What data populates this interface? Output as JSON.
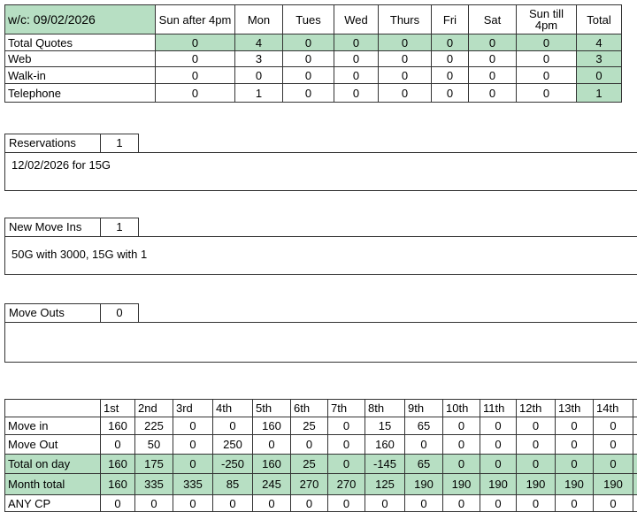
{
  "quotes": {
    "week_label": "w/c:   09/02/2026",
    "columns": [
      "Sun after 4pm",
      "Mon",
      "Tues",
      "Wed",
      "Thurs",
      "Fri",
      "Sat",
      "Sun till 4pm",
      "Total"
    ],
    "rows": [
      {
        "label": "Total Quotes",
        "values": [
          "0",
          "4",
          "0",
          "0",
          "0",
          "0",
          "0",
          "0",
          "4"
        ]
      },
      {
        "label": "Web",
        "values": [
          "0",
          "3",
          "0",
          "0",
          "0",
          "0",
          "0",
          "0",
          "3"
        ]
      },
      {
        "label": "Walk-in",
        "values": [
          "0",
          "0",
          "0",
          "0",
          "0",
          "0",
          "0",
          "0",
          "0"
        ]
      },
      {
        "label": "Telephone",
        "values": [
          "0",
          "1",
          "0",
          "0",
          "0",
          "0",
          "0",
          "0",
          "1"
        ]
      }
    ]
  },
  "reservations": {
    "label": "Reservations",
    "count": "1",
    "details": "12/02/2026 for 15G"
  },
  "new_move_ins": {
    "label": "New Move Ins",
    "count": "1",
    "details": "50G with 3000, 15G with 1"
  },
  "move_outs": {
    "label": "Move Outs",
    "count": "0",
    "details": ""
  },
  "daily": {
    "columns": [
      "1st",
      "2nd",
      "3rd",
      "4th",
      "5th",
      "6th",
      "7th",
      "8th",
      "9th",
      "10th",
      "11th",
      "12th",
      "13th",
      "14th"
    ],
    "rows": [
      {
        "label": "Move in",
        "values": [
          "160",
          "225",
          "0",
          "0",
          "160",
          "25",
          "0",
          "15",
          "65",
          "0",
          "0",
          "0",
          "0",
          "0"
        ]
      },
      {
        "label": "Move Out",
        "values": [
          "0",
          "50",
          "0",
          "250",
          "0",
          "0",
          "0",
          "160",
          "0",
          "0",
          "0",
          "0",
          "0",
          "0"
        ]
      },
      {
        "label": "Total on day",
        "values": [
          "160",
          "175",
          "0",
          "-250",
          "160",
          "25",
          "0",
          "-145",
          "65",
          "0",
          "0",
          "0",
          "0",
          "0"
        ]
      },
      {
        "label": "Month total",
        "values": [
          "160",
          "335",
          "335",
          "85",
          "245",
          "270",
          "270",
          "125",
          "190",
          "190",
          "190",
          "190",
          "190",
          "190"
        ]
      },
      {
        "label": "ANY CP",
        "values": [
          "0",
          "0",
          "0",
          "0",
          "0",
          "0",
          "0",
          "0",
          "0",
          "0",
          "0",
          "0",
          "0",
          "0"
        ]
      }
    ]
  },
  "colors": {
    "highlight": "#b7dfc3"
  }
}
